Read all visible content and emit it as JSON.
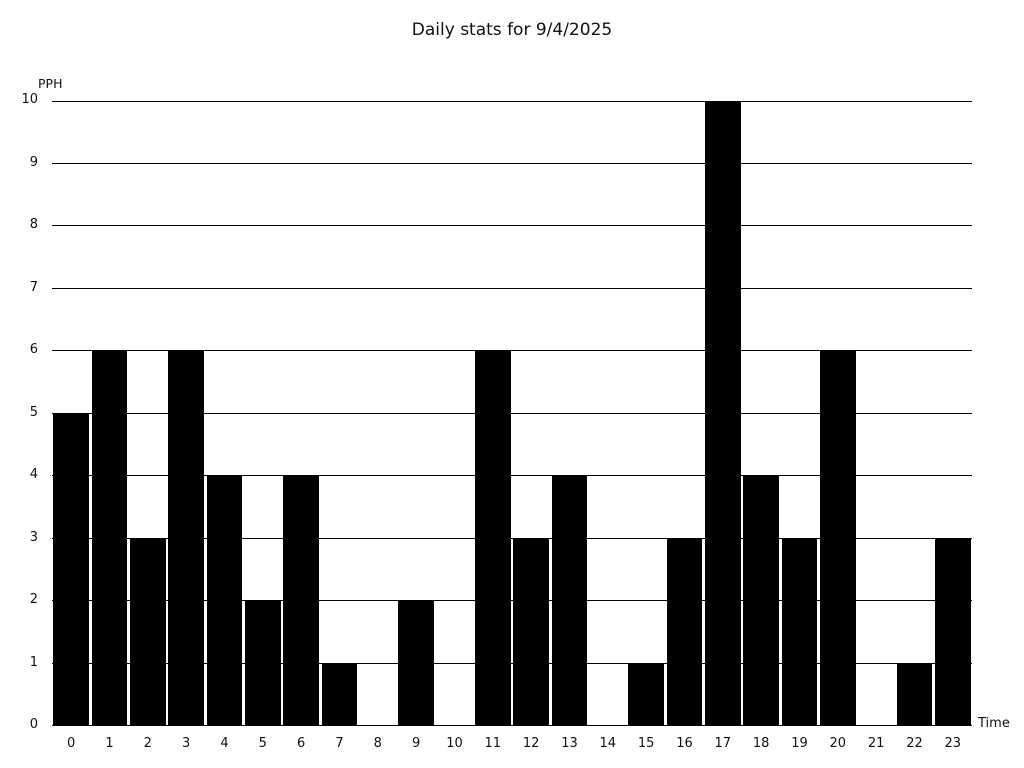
{
  "page": {
    "background_color": "#ffffff",
    "text_color": "#111111"
  },
  "chart_data": {
    "type": "bar",
    "title": "Daily stats for 9/4/2025",
    "xlabel": "Time",
    "ylabel": "PPH",
    "categories": [
      "0",
      "1",
      "2",
      "3",
      "4",
      "5",
      "6",
      "7",
      "8",
      "9",
      "10",
      "11",
      "12",
      "13",
      "14",
      "15",
      "16",
      "17",
      "18",
      "19",
      "20",
      "21",
      "22",
      "23"
    ],
    "values": [
      5,
      6,
      3,
      6,
      4,
      2,
      4,
      1,
      0,
      2,
      0,
      6,
      3,
      4,
      0,
      1,
      3,
      10,
      4,
      3,
      6,
      0,
      1,
      3
    ],
    "ylim": [
      0,
      10
    ],
    "ytick_step": 1,
    "yticks": [
      0,
      1,
      2,
      3,
      4,
      5,
      6,
      7,
      8,
      9,
      10
    ],
    "grid": true,
    "legend": false,
    "bar_color": "#000000",
    "gridline_color": "#000000"
  }
}
